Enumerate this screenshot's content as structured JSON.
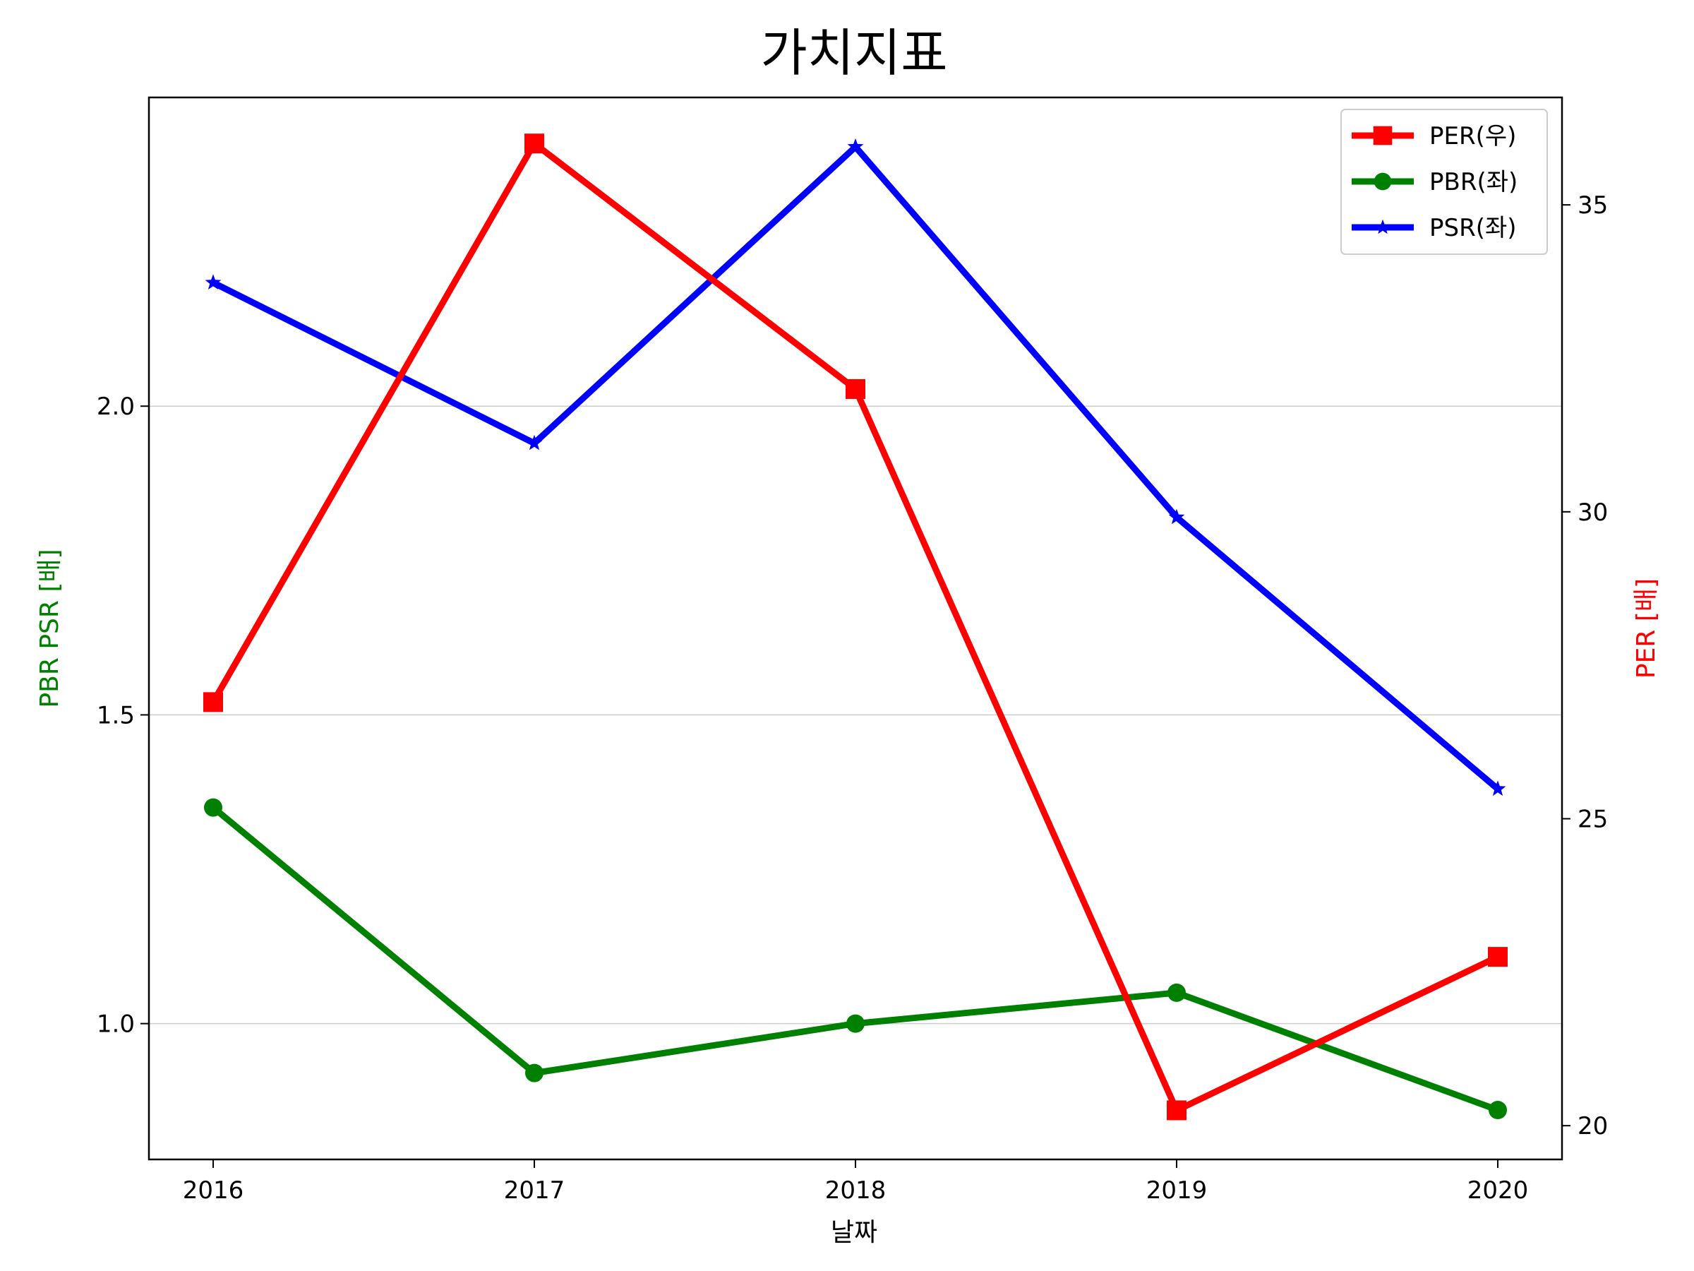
{
  "chart_data": {
    "type": "line",
    "title": "가치지표",
    "xlabel": "날짜",
    "ylabel_left": "PBR PSR [배]",
    "ylabel_right": "PER [배]",
    "categories": [
      "2016",
      "2017",
      "2018",
      "2019",
      "2020"
    ],
    "y_left": {
      "lim": [
        0.78,
        2.5
      ],
      "ticks": [
        1.0,
        1.5,
        2.0
      ],
      "tick_labels": [
        "1.0",
        "1.5",
        "2.0"
      ]
    },
    "y_right": {
      "lim": [
        19.45,
        36.75
      ],
      "ticks": [
        20,
        25,
        30,
        35
      ],
      "tick_labels": [
        "20",
        "25",
        "30",
        "35"
      ]
    },
    "grid": "horizontal, left axis",
    "legend_position": "top-right",
    "series": [
      {
        "name": "PER(우)",
        "axis": "right",
        "color": "#ff0000",
        "marker": "square",
        "values": [
          26.9,
          36.0,
          32.0,
          20.25,
          22.75
        ]
      },
      {
        "name": "PBR(좌)",
        "axis": "left",
        "color": "#008000",
        "marker": "circle",
        "values": [
          1.35,
          0.92,
          1.0,
          1.05,
          0.86
        ]
      },
      {
        "name": "PSR(좌)",
        "axis": "left",
        "color": "#0000ff",
        "marker": "star",
        "values": [
          2.2,
          1.94,
          2.42,
          1.82,
          1.38
        ]
      }
    ]
  }
}
